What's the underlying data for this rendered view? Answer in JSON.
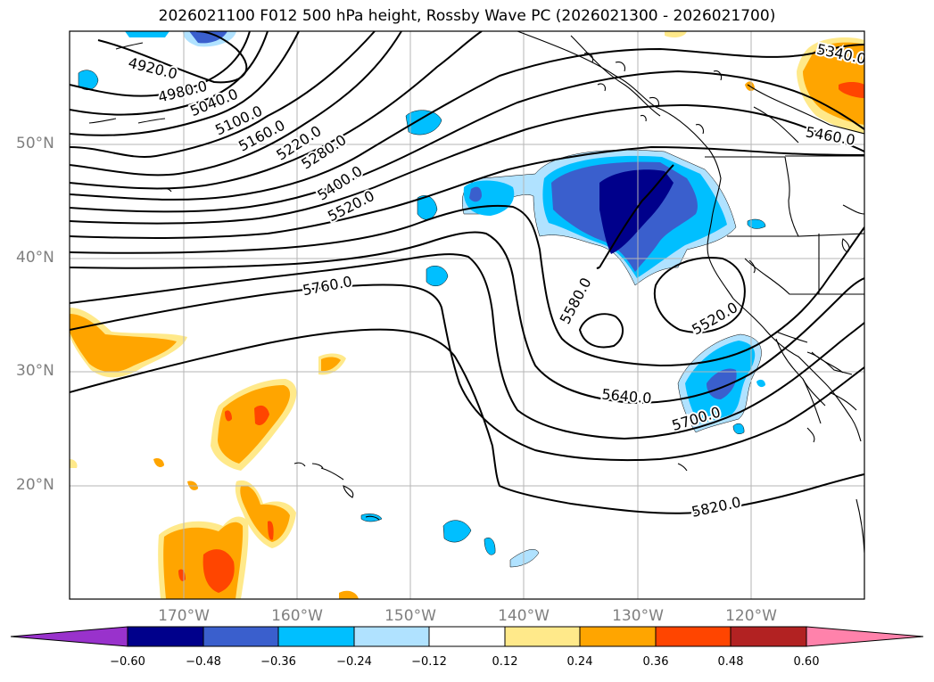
{
  "title": "2026021100 F012 500 hPa height, Rossby Wave PC (2026021300 - 2026021700)",
  "map": {
    "projection": "PlateCarree",
    "lon_range": [
      -180,
      -110
    ],
    "lat_range": [
      10,
      60
    ],
    "grid": true,
    "lat_ticks": [
      {
        "label": "50°N",
        "lat": 50
      },
      {
        "label": "40°N",
        "lat": 40
      },
      {
        "label": "30°N",
        "lat": 30
      },
      {
        "label": "20°N",
        "lat": 20
      }
    ],
    "lon_ticks": [
      {
        "label": "170°W",
        "lon": -170
      },
      {
        "label": "160°W",
        "lon": -160
      },
      {
        "label": "150°W",
        "lon": -150
      },
      {
        "label": "140°W",
        "lon": -140
      },
      {
        "label": "130°W",
        "lon": -130
      },
      {
        "label": "120°W",
        "lon": -120
      }
    ]
  },
  "contours": {
    "variable": "500 hPa height",
    "line_color": "#000000",
    "labels": [
      "4920.0",
      "4980.0",
      "5040.0",
      "5100.0",
      "5160.0",
      "5220.0",
      "5280.0",
      "5340.0",
      "5400.0",
      "5460.0",
      "5520.0",
      "5520.0",
      "5580.0",
      "5640.0",
      "5700.0",
      "5760.0",
      "5820.0"
    ]
  },
  "shading": {
    "variable": "Rossby Wave PC",
    "colors": {
      "dark_navy": "#00008b",
      "royal_blue": "#3a5fcd",
      "deep_sky": "#00bfff",
      "light_blue": "#b0e2ff",
      "light_yellow": "#ffe98a",
      "orange": "#ffa500",
      "red_orange": "#ff4500",
      "firebrick": "#b22222",
      "pink": "#ff82ab",
      "purple": "#9932cc"
    }
  },
  "colorbar": {
    "ticks": [
      "−0.60",
      "−0.48",
      "−0.36",
      "−0.24",
      "−0.12",
      "0.12",
      "0.24",
      "0.36",
      "0.48",
      "0.60"
    ],
    "colors": [
      "#9932cc",
      "#00008b",
      "#3a5fcd",
      "#00bfff",
      "#b0e2ff",
      "#ffffff",
      "#ffe98a",
      "#ffa500",
      "#ff4500",
      "#b22222",
      "#ff82ab"
    ]
  }
}
